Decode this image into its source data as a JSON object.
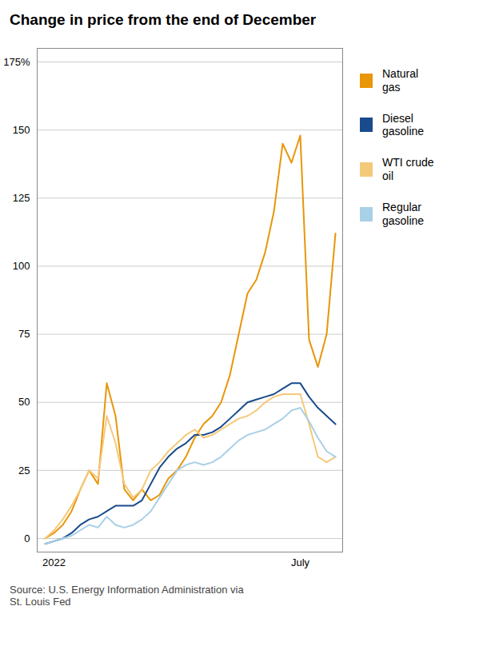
{
  "chart_data": {
    "type": "line",
    "title": "Change in price from the end of December",
    "source": "Source: U.S. Energy Information Administration via\nSt. Louis Fed",
    "categories": [
      null,
      "2022",
      null,
      null,
      null,
      null,
      null,
      null,
      null,
      null,
      null,
      null,
      null,
      null,
      null,
      null,
      null,
      null,
      null,
      null,
      null,
      null,
      null,
      null,
      null,
      null,
      null,
      null,
      null,
      "July",
      null,
      null,
      null,
      null
    ],
    "series": [
      {
        "name": "Natural\ngas",
        "color": "#E8960A",
        "values": [
          0,
          2,
          5,
          10,
          18,
          25,
          20,
          57,
          45,
          18,
          14,
          18,
          14,
          16,
          22,
          25,
          30,
          37,
          42,
          45,
          50,
          60,
          75,
          90,
          95,
          105,
          120,
          145,
          138,
          148,
          73,
          63,
          75,
          112
        ]
      },
      {
        "name": "Diesel\ngasoline",
        "color": "#1A4B8C",
        "values": [
          -2,
          -1,
          0,
          2,
          5,
          7,
          8,
          10,
          12,
          12,
          12,
          14,
          20,
          26,
          30,
          33,
          35,
          38,
          38,
          39,
          41,
          44,
          47,
          50,
          51,
          52,
          53,
          55,
          57,
          57,
          52,
          48,
          45,
          42
        ]
      },
      {
        "name": "WTI crude\noil",
        "color": "#F5C97A",
        "values": [
          0,
          3,
          7,
          12,
          18,
          25,
          22,
          45,
          35,
          20,
          15,
          18,
          25,
          28,
          32,
          35,
          38,
          40,
          37,
          38,
          40,
          42,
          44,
          45,
          47,
          50,
          52,
          53,
          53,
          53,
          42,
          30,
          28,
          30
        ]
      },
      {
        "name": "Regular\ngasoline",
        "color": "#A8D0E6",
        "values": [
          -2,
          -1,
          0,
          1,
          3,
          5,
          4,
          8,
          5,
          4,
          5,
          7,
          10,
          15,
          20,
          25,
          27,
          28,
          27,
          28,
          30,
          33,
          36,
          38,
          39,
          40,
          42,
          44,
          47,
          48,
          43,
          37,
          32,
          30
        ]
      }
    ],
    "ylim": [
      -5,
      180
    ],
    "yticks": [
      0,
      25,
      50,
      75,
      100,
      125,
      150,
      {
        "value": 175,
        "label": "175%"
      }
    ],
    "grid": true,
    "legend": "right"
  }
}
